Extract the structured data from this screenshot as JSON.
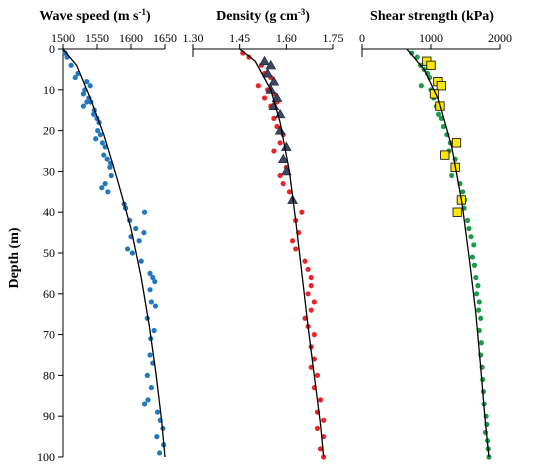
{
  "chart_data": {
    "type": "scatter",
    "ylabel": "Depth (m)",
    "ylim": [
      0,
      100
    ],
    "yticks": [
      0,
      10,
      20,
      30,
      40,
      50,
      60,
      70,
      80,
      90,
      100
    ],
    "y_axis_inverted": true,
    "grid": false,
    "colors": {
      "wave_points": "#1f78c1",
      "density_points": "#e8262a",
      "density_triangles": "#3b4663",
      "strength_points": "#1d9a48",
      "strength_squares": "#ffe800",
      "fit_line": "#000000"
    },
    "panels": [
      {
        "id": "wave",
        "title_main": "Wave speed (m s",
        "title_sup": "-1",
        "title_close": ")",
        "xlim": [
          1500,
          1650
        ],
        "xticks": [
          "1500",
          "1550",
          "1600",
          "1650"
        ],
        "series": [
          {
            "marker": "circle",
            "points": [
              [
                1503,
                1
              ],
              [
                1506,
                2
              ],
              [
                1512,
                4
              ],
              [
                1522,
                6
              ],
              [
                1518,
                7
              ],
              [
                1535,
                8
              ],
              [
                1540,
                9
              ],
              [
                1532,
                10
              ],
              [
                1530,
                11
              ],
              [
                1538,
                12
              ],
              [
                1535,
                13
              ],
              [
                1541,
                13
              ],
              [
                1530,
                14
              ],
              [
                1546,
                15
              ],
              [
                1545,
                16
              ],
              [
                1550,
                17
              ],
              [
                1553,
                18
              ],
              [
                1551,
                20
              ],
              [
                1555,
                21
              ],
              [
                1548,
                22
              ],
              [
                1558,
                23
              ],
              [
                1562,
                24
              ],
              [
                1560,
                26
              ],
              [
                1565,
                27
              ],
              [
                1570,
                28
              ],
              [
                1569,
                29
              ],
              [
                1571,
                31
              ],
              [
                1562,
                33
              ],
              [
                1557,
                34
              ],
              [
                1566,
                35
              ],
              [
                1590,
                38
              ],
              [
                1592,
                39
              ],
              [
                1620,
                40
              ],
              [
                1598,
                42
              ],
              [
                1607,
                44
              ],
              [
                1619,
                45
              ],
              [
                1600,
                46
              ],
              [
                1612,
                47
              ],
              [
                1595,
                49
              ],
              [
                1602,
                50
              ],
              [
                1615,
                52
              ],
              [
                1628,
                55
              ],
              [
                1632,
                56
              ],
              [
                1635,
                57
              ],
              [
                1628,
                59
              ],
              [
                1630,
                62
              ],
              [
                1636,
                63
              ],
              [
                1624,
                66
              ],
              [
                1634,
                69
              ],
              [
                1629,
                71
              ],
              [
                1628,
                75
              ],
              [
                1632,
                77
              ],
              [
                1624,
                80
              ],
              [
                1630,
                83
              ],
              [
                1625,
                86
              ],
              [
                1620,
                87
              ],
              [
                1639,
                89
              ],
              [
                1643,
                91
              ],
              [
                1647,
                93
              ],
              [
                1638,
                95
              ],
              [
                1648,
                97
              ],
              [
                1642,
                99
              ]
            ]
          }
        ],
        "fit_curve": [
          [
            1500,
            0
          ],
          [
            1520,
            4
          ],
          [
            1540,
            12
          ],
          [
            1560,
            21
          ],
          [
            1580,
            32
          ],
          [
            1600,
            44
          ],
          [
            1615,
            56
          ],
          [
            1627,
            68
          ],
          [
            1637,
            80
          ],
          [
            1645,
            91
          ],
          [
            1650,
            100
          ]
        ]
      },
      {
        "id": "density",
        "title_main": "Density (g cm",
        "title_sup": "-3",
        "title_close": ")",
        "xlim": [
          1.3,
          1.75
        ],
        "xticks": [
          "1.30",
          "1.45",
          "1.60",
          "1.75"
        ],
        "series": [
          {
            "marker": "circle",
            "points": [
              [
                1.46,
                1
              ],
              [
                1.48,
                2
              ],
              [
                1.52,
                4
              ],
              [
                1.53,
                6
              ],
              [
                1.55,
                7
              ],
              [
                1.51,
                9
              ],
              [
                1.54,
                10
              ],
              [
                1.56,
                11
              ],
              [
                1.53,
                12
              ],
              [
                1.57,
                13
              ],
              [
                1.55,
                14
              ],
              [
                1.58,
                16
              ],
              [
                1.56,
                17
              ],
              [
                1.57,
                19
              ],
              [
                1.59,
                21
              ],
              [
                1.58,
                23
              ],
              [
                1.56,
                25
              ],
              [
                1.59,
                27
              ],
              [
                1.6,
                29
              ],
              [
                1.58,
                31
              ],
              [
                1.59,
                33
              ],
              [
                1.61,
                35
              ],
              [
                1.62,
                37
              ],
              [
                1.65,
                40
              ],
              [
                1.63,
                42
              ],
              [
                1.64,
                45
              ],
              [
                1.62,
                47
              ],
              [
                1.63,
                49
              ],
              [
                1.66,
                52
              ],
              [
                1.67,
                54
              ],
              [
                1.68,
                56
              ],
              [
                1.68,
                58
              ],
              [
                1.67,
                60
              ],
              [
                1.69,
                62
              ],
              [
                1.68,
                64
              ],
              [
                1.66,
                66
              ],
              [
                1.67,
                68
              ],
              [
                1.69,
                70
              ],
              [
                1.68,
                73
              ],
              [
                1.69,
                76
              ],
              [
                1.68,
                78
              ],
              [
                1.7,
                80
              ],
              [
                1.69,
                83
              ],
              [
                1.71,
                86
              ],
              [
                1.7,
                89
              ],
              [
                1.72,
                91
              ],
              [
                1.7,
                93
              ],
              [
                1.72,
                95
              ],
              [
                1.71,
                98
              ],
              [
                1.72,
                100
              ]
            ]
          },
          {
            "marker": "triangle",
            "points": [
              [
                1.53,
                3
              ],
              [
                1.55,
                4
              ],
              [
                1.54,
                6
              ],
              [
                1.56,
                8
              ],
              [
                1.55,
                10
              ],
              [
                1.57,
                12
              ],
              [
                1.56,
                14
              ],
              [
                1.58,
                16
              ],
              [
                1.58,
                20
              ],
              [
                1.6,
                24
              ],
              [
                1.59,
                27
              ],
              [
                1.6,
                30
              ],
              [
                1.62,
                37
              ]
            ]
          }
        ],
        "fit_curve": [
          [
            1.45,
            0
          ],
          [
            1.5,
            3
          ],
          [
            1.55,
            10
          ],
          [
            1.58,
            18
          ],
          [
            1.61,
            30
          ],
          [
            1.63,
            42
          ],
          [
            1.65,
            55
          ],
          [
            1.67,
            68
          ],
          [
            1.69,
            80
          ],
          [
            1.71,
            92
          ],
          [
            1.72,
            100
          ]
        ]
      },
      {
        "id": "strength",
        "title_main": "Shear strength (kPa)",
        "title_sup": "",
        "title_close": "",
        "xlim": [
          0,
          2000
        ],
        "xticks": [
          "0",
          "1000",
          "2000"
        ],
        "series": [
          {
            "marker": "circle",
            "points": [
              [
                720,
                1
              ],
              [
                800,
                2
              ],
              [
                850,
                4
              ],
              [
                900,
                5
              ],
              [
                950,
                6
              ],
              [
                980,
                7
              ],
              [
                860,
                9
              ],
              [
                1000,
                10
              ],
              [
                1040,
                12
              ],
              [
                1080,
                14
              ],
              [
                1110,
                16
              ],
              [
                1150,
                17
              ],
              [
                1180,
                19
              ],
              [
                1230,
                21
              ],
              [
                1280,
                23
              ],
              [
                1260,
                25
              ],
              [
                1350,
                27
              ],
              [
                1380,
                29
              ],
              [
                1300,
                31
              ],
              [
                1420,
                33
              ],
              [
                1460,
                35
              ],
              [
                1490,
                37
              ],
              [
                1480,
                39
              ],
              [
                1530,
                42
              ],
              [
                1550,
                44
              ],
              [
                1580,
                46
              ],
              [
                1620,
                48
              ],
              [
                1600,
                51
              ],
              [
                1630,
                53
              ],
              [
                1650,
                56
              ],
              [
                1680,
                58
              ],
              [
                1660,
                60
              ],
              [
                1700,
                62
              ],
              [
                1690,
                64
              ],
              [
                1720,
                66
              ],
              [
                1700,
                69
              ],
              [
                1730,
                72
              ],
              [
                1720,
                75
              ],
              [
                1740,
                78
              ],
              [
                1750,
                81
              ],
              [
                1760,
                84
              ],
              [
                1770,
                87
              ],
              [
                1800,
                90
              ],
              [
                1810,
                92
              ],
              [
                1790,
                94
              ],
              [
                1820,
                96
              ],
              [
                1830,
                98
              ],
              [
                1840,
                100
              ]
            ]
          },
          {
            "marker": "square",
            "points": [
              [
                940,
                3
              ],
              [
                1000,
                4
              ],
              [
                1100,
                8
              ],
              [
                1150,
                9
              ],
              [
                1050,
                11
              ],
              [
                1130,
                14
              ],
              [
                1370,
                23
              ],
              [
                1200,
                26
              ],
              [
                1350,
                29
              ],
              [
                1440,
                37
              ],
              [
                1380,
                40
              ]
            ]
          }
        ],
        "fit_curve": [
          [
            650,
            0
          ],
          [
            900,
            5
          ],
          [
            1100,
            12
          ],
          [
            1300,
            24
          ],
          [
            1450,
            38
          ],
          [
            1560,
            52
          ],
          [
            1650,
            65
          ],
          [
            1720,
            78
          ],
          [
            1780,
            90
          ],
          [
            1840,
            100
          ]
        ]
      }
    ]
  }
}
